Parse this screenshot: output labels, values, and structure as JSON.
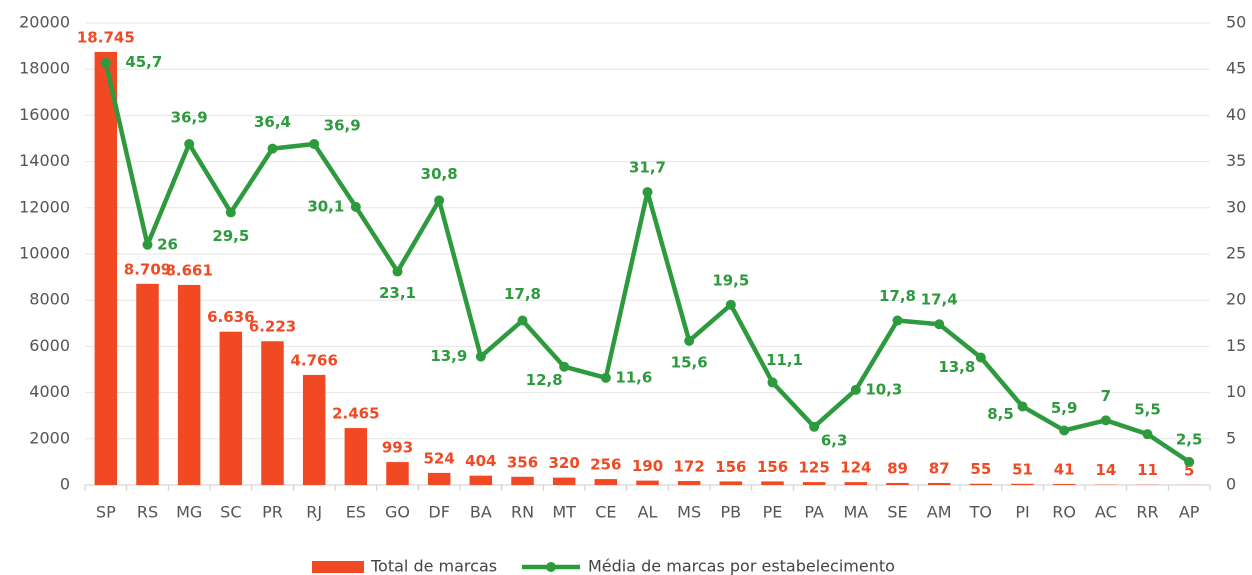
{
  "chart_data": {
    "type": "bar_line",
    "categories": [
      "SP",
      "RS",
      "MG",
      "SC",
      "PR",
      "RJ",
      "ES",
      "GO",
      "DF",
      "BA",
      "RN",
      "MT",
      "CE",
      "AL",
      "MS",
      "PB",
      "PE",
      "PA",
      "MA",
      "SE",
      "AM",
      "TO",
      "PI",
      "RO",
      "AC",
      "RR",
      "AP"
    ],
    "series": [
      {
        "name": "Total de marcas",
        "type": "bar",
        "color": "#f04923",
        "values": [
          18745,
          8709,
          8661,
          6636,
          6223,
          4766,
          2465,
          993,
          524,
          404,
          356,
          320,
          256,
          190,
          172,
          156,
          156,
          125,
          124,
          89,
          87,
          55,
          51,
          41,
          14,
          11,
          5
        ],
        "value_labels": [
          "18.745",
          "8.709",
          "8.661",
          "6.636",
          "6.223",
          "4.766",
          "2.465",
          "993",
          "524",
          "404",
          "356",
          "320",
          "256",
          "190",
          "172",
          "156",
          "156",
          "125",
          "124",
          "89",
          "87",
          "55",
          "51",
          "41",
          "14",
          "11",
          "5"
        ]
      },
      {
        "name": "Média de marcas por estabelecimento",
        "type": "line",
        "axis": "y2",
        "color": "#2e9a3e",
        "values": [
          45.7,
          26,
          36.9,
          29.5,
          36.4,
          36.9,
          30.1,
          23.1,
          30.8,
          13.9,
          17.8,
          12.8,
          11.6,
          31.7,
          15.6,
          19.5,
          11.1,
          6.3,
          10.3,
          17.8,
          17.4,
          13.8,
          8.5,
          5.9,
          7,
          5.5,
          2.5
        ],
        "value_labels": [
          "45,7",
          "26",
          "36,9",
          "29,5",
          "36,4",
          "36,9",
          "30,1",
          "23,1",
          "30,8",
          "13,9",
          "17,8",
          "12,8",
          "11,6",
          "31,7",
          "15,6",
          "19,5",
          "11,1",
          "6,3",
          "10,3",
          "17,8",
          "17,4",
          "13,8",
          "8,5",
          "5,9",
          "7",
          "5,5",
          "2,5"
        ]
      }
    ],
    "ylim": [
      0,
      20000
    ],
    "yticks": [
      0,
      2000,
      4000,
      6000,
      8000,
      10000,
      12000,
      14000,
      16000,
      18000,
      20000
    ],
    "y2lim": [
      0,
      50
    ],
    "y2ticks": [
      0,
      5,
      10,
      15,
      20,
      25,
      30,
      35,
      40,
      45,
      50
    ],
    "grid": true,
    "legend": "bottom"
  }
}
